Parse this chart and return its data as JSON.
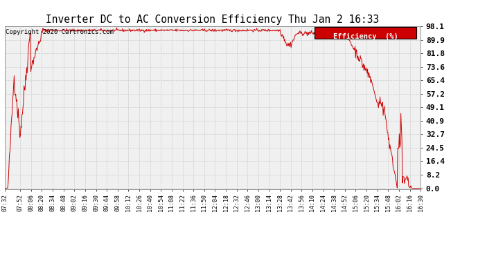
{
  "title": "Inverter DC to AC Conversion Efficiency Thu Jan 2 16:33",
  "copyright": "Copyright 2020 Cartronics.com",
  "legend_text": "Efficiency  (%)",
  "legend_bg": "#cc0000",
  "legend_fg": "#ffffff",
  "line_color": "#cc0000",
  "bg_color": "#ffffff",
  "plot_bg": "#f0f0f0",
  "grid_color": "#cccccc",
  "yticks": [
    0.0,
    8.2,
    16.4,
    24.5,
    32.7,
    40.9,
    49.1,
    57.2,
    65.4,
    73.6,
    81.8,
    89.9,
    98.1
  ],
  "xtick_labels": [
    "07:32",
    "07:52",
    "08:06",
    "08:20",
    "08:34",
    "08:48",
    "09:02",
    "09:16",
    "09:30",
    "09:44",
    "09:58",
    "10:12",
    "10:26",
    "10:40",
    "10:54",
    "11:08",
    "11:22",
    "11:36",
    "11:50",
    "12:04",
    "12:18",
    "12:32",
    "12:46",
    "13:00",
    "13:14",
    "13:28",
    "13:42",
    "13:56",
    "14:10",
    "14:24",
    "14:38",
    "14:52",
    "15:06",
    "15:20",
    "15:34",
    "15:48",
    "16:02",
    "16:16",
    "16:30"
  ],
  "ymin": 0.0,
  "ymax": 98.1
}
